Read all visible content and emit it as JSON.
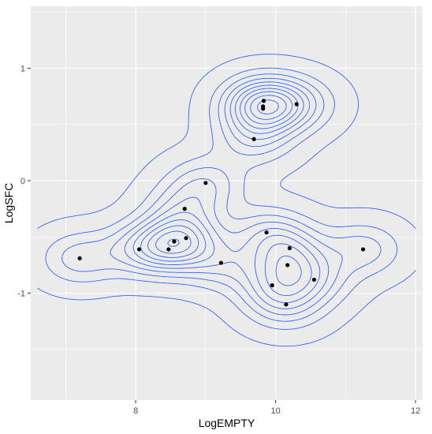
{
  "chart_data": {
    "type": "scatter",
    "xlabel": "LogEMPTY",
    "ylabel": "LogSFC",
    "xlim": [
      6.5,
      12.1
    ],
    "ylim": [
      -1.95,
      1.55
    ],
    "x_ticks": [
      8,
      10,
      12
    ],
    "y_ticks": [
      -1,
      0,
      1
    ],
    "x_tick_labels": [
      "8",
      "10",
      "12"
    ],
    "y_tick_labels": [
      "-1",
      "0",
      "1"
    ],
    "grid": true,
    "background_color": "#ebebeb",
    "contour_color": "#3366ff",
    "point_color": "#000000",
    "points": [
      {
        "x": 7.2,
        "y": -0.69
      },
      {
        "x": 8.05,
        "y": -0.61
      },
      {
        "x": 8.47,
        "y": -0.61
      },
      {
        "x": 8.55,
        "y": -0.54
      },
      {
        "x": 8.7,
        "y": -0.25
      },
      {
        "x": 8.72,
        "y": -0.51
      },
      {
        "x": 9.0,
        "y": -0.02
      },
      {
        "x": 9.22,
        "y": -0.73
      },
      {
        "x": 9.69,
        "y": 0.37
      },
      {
        "x": 9.82,
        "y": 0.64
      },
      {
        "x": 9.82,
        "y": 0.66
      },
      {
        "x": 9.83,
        "y": 0.71
      },
      {
        "x": 9.87,
        "y": -0.46
      },
      {
        "x": 9.95,
        "y": -0.93
      },
      {
        "x": 10.15,
        "y": -1.1
      },
      {
        "x": 10.17,
        "y": -0.75
      },
      {
        "x": 10.2,
        "y": -0.6
      },
      {
        "x": 10.3,
        "y": 0.68
      },
      {
        "x": 10.55,
        "y": -0.88
      },
      {
        "x": 11.25,
        "y": -0.61
      }
    ]
  }
}
